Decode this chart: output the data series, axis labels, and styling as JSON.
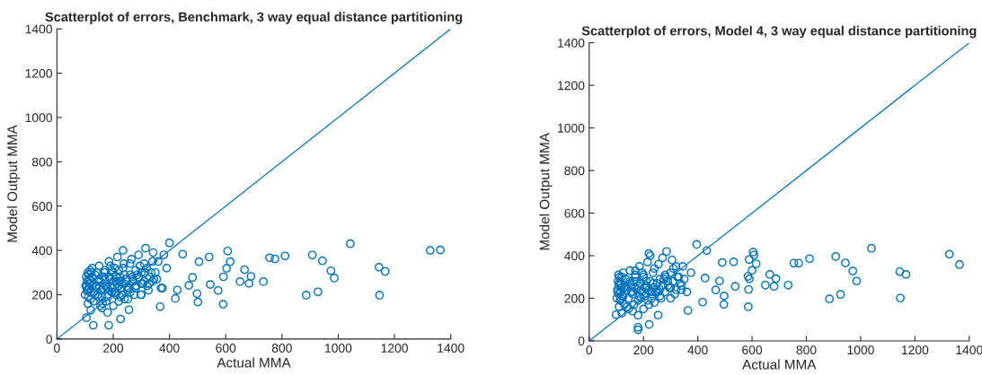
{
  "chart_data": [
    {
      "type": "scatter",
      "title": "Scatterplot of errors, Benchmark, 3 way equal distance partitioning",
      "xlabel": "Actual MMA",
      "ylabel": "Model Output MMA",
      "xlim": [
        0,
        1400
      ],
      "ylim": [
        0,
        1400
      ],
      "xticks": [
        0,
        200,
        400,
        600,
        800,
        1000,
        1200,
        1400
      ],
      "yticks": [
        0,
        200,
        400,
        600,
        800,
        1000,
        1200,
        1400
      ],
      "grid": false,
      "legend": false,
      "marker": "circle",
      "series": [
        {
          "color": "#0072bd",
          "x": [
            1043,
            908,
            944,
            974,
            986,
            886,
            928,
            811,
            756,
            775,
            734,
            690,
            683,
            667,
            651,
            607,
            603,
            616,
            592,
            591,
            573,
            545,
            541,
            505,
            501,
            498,
            469,
            482,
            447,
            400,
            367,
            421,
            428,
            1327,
            1363,
            1145,
            1167,
            1147,
            184,
            129,
            226,
            256,
            105,
            110,
            115,
            120,
            125,
            130,
            140,
            150,
            160,
            170,
            180,
            190,
            200,
            210,
            220,
            230,
            240,
            250,
            260,
            270,
            280,
            290,
            300,
            310,
            320,
            330,
            340,
            350,
            105,
            112,
            118,
            135,
            145,
            155,
            165,
            175,
            185,
            195,
            205,
            215,
            225,
            235,
            245,
            255,
            265,
            275,
            285,
            295,
            305,
            315,
            325,
            335,
            345,
            360,
            370,
            380,
            108,
            122,
            138,
            148,
            162,
            178,
            192,
            208,
            222,
            238,
            252,
            268,
            282,
            298,
            312,
            328,
            342,
            355,
            375,
            390,
            100,
            102,
            104,
            106,
            108,
            110,
            112,
            114,
            116,
            118,
            120,
            125,
            130,
            135,
            140,
            145,
            150,
            155,
            160,
            165,
            170,
            175,
            180,
            185,
            190,
            195,
            200,
            205,
            210,
            215,
            220,
            225,
            230,
            235,
            240,
            250,
            260,
            270,
            280,
            290,
            300,
            310,
            150,
            170,
            190,
            210,
            230,
            130,
            110,
            120,
            160,
            180,
            200,
            220,
            240,
            260,
            280,
            300,
            320,
            340
          ],
          "values": [
            430,
            379,
            353,
            308,
            275,
            198,
            213,
            375,
            367,
            362,
            259,
            283,
            251,
            313,
            259,
            397,
            319,
            349,
            281,
            157,
            219,
            246,
            370,
            349,
            167,
            205,
            242,
            278,
            383,
            434,
            146,
            183,
            221,
            400,
            402,
            324,
            305,
            198,
            62,
            62,
            90,
            132,
            96,
            220,
            250,
            180,
            280,
            210,
            300,
            240,
            190,
            270,
            230,
            330,
            260,
            200,
            310,
            250,
            290,
            220,
            340,
            270,
            240,
            380,
            300,
            260,
            320,
            280,
            350,
            300,
            240,
            290,
            310,
            200,
            260,
            150,
            230,
            170,
            280,
            210,
            320,
            250,
            190,
            400,
            270,
            230,
            360,
            200,
            290,
            330,
            250,
            410,
            220,
            300,
            270,
            350,
            230,
            380,
            260,
            300,
            240,
            190,
            160,
            230,
            310,
            210,
            260,
            340,
            180,
            280,
            240,
            200,
            300,
            250,
            390,
            270,
            230,
            320,
            200,
            240,
            280,
            220,
            260,
            300,
            190,
            230,
            270,
            250,
            210,
            320,
            170,
            290,
            240,
            200,
            330,
            260,
            220,
            280,
            310,
            240,
            190,
            350,
            270,
            230,
            300,
            210,
            260,
            370,
            240,
            280,
            200,
            320,
            250,
            230,
            290,
            260,
            310,
            280,
            250,
            340,
            270,
            300,
            240,
            280,
            230,
            250,
            160,
            130,
            140,
            120,
            150,
            170,
            180,
            210,
            230,
            200,
            240,
            260
          ]
        },
        {
          "type": "line",
          "color": "#0072bd",
          "x": [
            0,
            1400
          ],
          "values": [
            0,
            1400
          ],
          "marker": "none"
        }
      ]
    },
    {
      "type": "scatter",
      "title": "Scatterplot of errors, Model 4, 3 way equal distance partitioning",
      "xlabel": "Actual MMA",
      "ylabel": "Model Output MMA",
      "xlim": [
        0,
        1400
      ],
      "ylim": [
        0,
        1400
      ],
      "xticks": [
        0,
        200,
        400,
        600,
        800,
        1000,
        1200,
        1400
      ],
      "yticks": [
        0,
        200,
        400,
        600,
        800,
        1000,
        1200,
        1400
      ],
      "grid": false,
      "legend": false,
      "marker": "circle",
      "series": [
        {
          "color": "#0072bd",
          "x": [
            396,
            604,
            607,
            589,
            615,
            600,
            585,
            590,
            587,
            586,
            665,
            688,
            649,
            681,
            733,
            754,
            772,
            812,
            908,
            944,
            971,
            985,
            885,
            926,
            1040,
            1144,
            1167,
            1146,
            1327,
            1364,
            538,
            497,
            496,
            466,
            490,
            532,
            480,
            427,
            418,
            364,
            433,
            180,
            180,
            221,
            254,
            99,
            105,
            110,
            115,
            120,
            125,
            130,
            140,
            150,
            160,
            170,
            180,
            190,
            200,
            210,
            220,
            230,
            240,
            250,
            260,
            270,
            280,
            290,
            300,
            310,
            320,
            330,
            340,
            350,
            108,
            118,
            135,
            145,
            155,
            165,
            175,
            185,
            195,
            205,
            215,
            225,
            235,
            245,
            255,
            265,
            275,
            285,
            295,
            305,
            315,
            325,
            335,
            345,
            360,
            375,
            102,
            104,
            106,
            108,
            110,
            112,
            114,
            116,
            118,
            120,
            122,
            125,
            130,
            135,
            140,
            145,
            150,
            155,
            160,
            165,
            170,
            175,
            180,
            185,
            190,
            195,
            200,
            205,
            210,
            215,
            220,
            225,
            230,
            235,
            240,
            250,
            260,
            270,
            280,
            290,
            300,
            310,
            150,
            170,
            190,
            210,
            230,
            130,
            110,
            120,
            160,
            180,
            200,
            220,
            240,
            260,
            280,
            300,
            320,
            340
          ],
          "values": [
            453,
            417,
            403,
            382,
            362,
            331,
            303,
            291,
            241,
            160,
            312,
            292,
            262,
            256,
            262,
            365,
            365,
            386,
            396,
            366,
            328,
            281,
            197,
            218,
            435,
            325,
            312,
            201,
            407,
            358,
            256,
            211,
            171,
            239,
            368,
            371,
            281,
            295,
            182,
            143,
            424,
            64,
            52,
            77,
            121,
            123,
            230,
            270,
            190,
            300,
            210,
            250,
            160,
            280,
            230,
            330,
            260,
            200,
            310,
            250,
            410,
            220,
            340,
            270,
            240,
            390,
            300,
            260,
            320,
            280,
            350,
            300,
            240,
            290,
            310,
            200,
            260,
            150,
            230,
            170,
            280,
            210,
            320,
            250,
            190,
            400,
            270,
            230,
            360,
            200,
            290,
            420,
            250,
            380,
            220,
            300,
            270,
            350,
            230,
            320,
            200,
            240,
            280,
            220,
            260,
            300,
            190,
            230,
            270,
            250,
            210,
            320,
            170,
            290,
            240,
            200,
            330,
            260,
            220,
            280,
            310,
            240,
            190,
            350,
            270,
            230,
            300,
            210,
            260,
            370,
            240,
            280,
            200,
            320,
            250,
            230,
            290,
            260,
            310,
            280,
            250,
            340,
            270,
            300,
            240,
            280,
            230,
            250,
            160,
            130,
            140,
            120,
            150,
            170,
            180,
            210,
            230,
            200,
            240,
            260
          ]
        },
        {
          "type": "line",
          "color": "#0072bd",
          "x": [
            0,
            1400
          ],
          "values": [
            0,
            1400
          ],
          "marker": "none"
        }
      ]
    }
  ]
}
